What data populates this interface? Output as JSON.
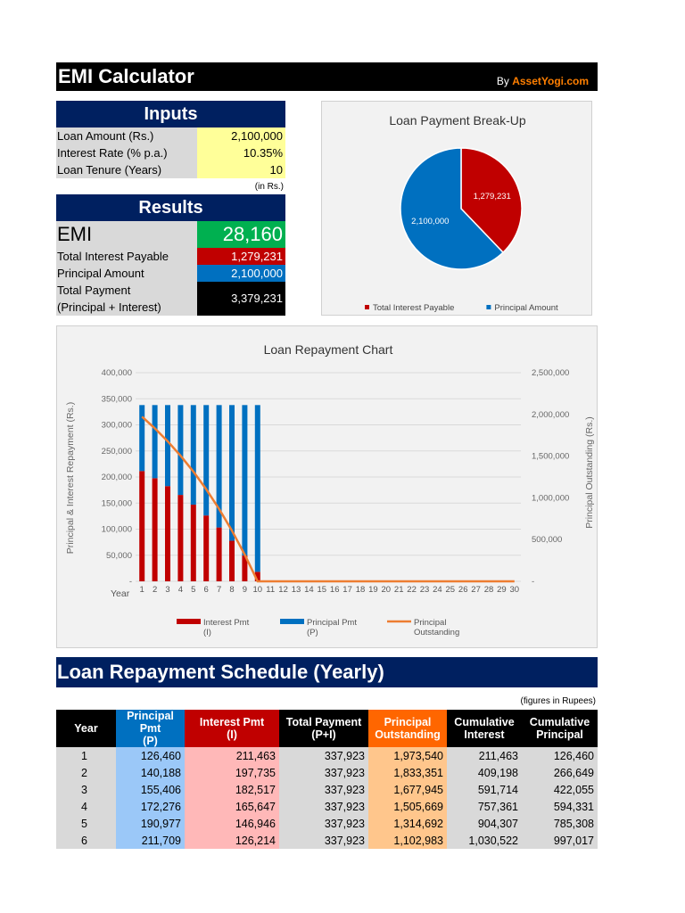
{
  "header": {
    "title": "EMI Calculator",
    "by": "By ",
    "brand": "AssetYogi.com"
  },
  "inputs": {
    "title": "Inputs",
    "rows": [
      {
        "label": "Loan Amount (Rs.)",
        "value": "2,100,000"
      },
      {
        "label": "Interest Rate (% p.a.)",
        "value": "10.35%"
      },
      {
        "label": "Loan Tenure (Years)",
        "value": "10"
      }
    ]
  },
  "results": {
    "unit_note": "(in Rs.)",
    "title": "Results",
    "emi_label": "EMI",
    "emi_value": "28,160",
    "rows": [
      {
        "label": "Total Interest Payable",
        "value": "1,279,231",
        "color": "#c00000"
      },
      {
        "label": "Principal Amount",
        "value": "2,100,000",
        "color": "#0070c0"
      },
      {
        "label": "Total Payment",
        "label2": "(Principal + Interest)",
        "value": "3,379,231",
        "color": "#000000"
      }
    ]
  },
  "chart_data": [
    {
      "type": "pie",
      "title": "Loan Payment Break-Up",
      "slices": [
        {
          "name": "Total Interest Payable",
          "value": 1279231,
          "label": "1,279,231",
          "color": "#c00000"
        },
        {
          "name": "Principal Amount",
          "value": 2100000,
          "label": "2,100,000",
          "color": "#0070c0"
        }
      ],
      "legend": "bottom"
    },
    {
      "type": "bar",
      "stacked": true,
      "title": "Loan Repayment Chart",
      "xlabel": "Year",
      "ylabel": "Principal & Interest Repayment (Rs.)",
      "y2label": "Principal Outstanding (Rs.)",
      "ylim": [
        0,
        400000
      ],
      "y2lim": [
        0,
        2500000
      ],
      "grid": true,
      "legend": "bottom",
      "yticks": [
        "-",
        "50,000",
        "100,000",
        "150,000",
        "200,000",
        "250,000",
        "300,000",
        "350,000",
        "400,000"
      ],
      "y2ticks": [
        "-",
        "500,000",
        "1,000,000",
        "1,500,000",
        "2,000,000",
        "2,500,000"
      ],
      "categories": [
        1,
        2,
        3,
        4,
        5,
        6,
        7,
        8,
        9,
        10,
        11,
        12,
        13,
        14,
        15,
        16,
        17,
        18,
        19,
        20,
        21,
        22,
        23,
        24,
        25,
        26,
        27,
        28,
        29,
        30
      ],
      "series": [
        {
          "name": "Interest Pmt (I)",
          "color": "#c00000",
          "values": [
            211463,
            197735,
            182517,
            165647,
            146946,
            126214,
            103223,
            77733,
            49479,
            18274,
            0,
            0,
            0,
            0,
            0,
            0,
            0,
            0,
            0,
            0,
            0,
            0,
            0,
            0,
            0,
            0,
            0,
            0,
            0,
            0
          ]
        },
        {
          "name": "Principal Pmt (P)",
          "color": "#0070c0",
          "values": [
            126460,
            140188,
            155406,
            172276,
            190977,
            211709,
            234700,
            260190,
            288444,
            319649,
            0,
            0,
            0,
            0,
            0,
            0,
            0,
            0,
            0,
            0,
            0,
            0,
            0,
            0,
            0,
            0,
            0,
            0,
            0,
            0
          ]
        },
        {
          "name": "Principal Outstanding",
          "type": "line",
          "axis": "secondary",
          "color": "#ed7d31",
          "values": [
            1973540,
            1833351,
            1677945,
            1505669,
            1314692,
            1102983,
            868283,
            608093,
            319649,
            0,
            0,
            0,
            0,
            0,
            0,
            0,
            0,
            0,
            0,
            0,
            0,
            0,
            0,
            0,
            0,
            0,
            0,
            0,
            0,
            0
          ]
        }
      ],
      "legend_items": [
        {
          "l1": "Interest Pmt",
          "l2": "(I)"
        },
        {
          "l1": "Principal Pmt",
          "l2": "(P)"
        },
        {
          "l1": "Principal",
          "l2": "Outstanding"
        }
      ]
    }
  ],
  "schedule": {
    "title": "Loan Repayment Schedule (Yearly)",
    "note": "(figures in Rupees)",
    "columns": [
      {
        "l1": "Year",
        "l2": ""
      },
      {
        "l1": "Principal Pmt",
        "l2": "(P)"
      },
      {
        "l1": "Interest Pmt",
        "l2": "(I)"
      },
      {
        "l1": "Total Payment",
        "l2": "(P+I)"
      },
      {
        "l1": "Principal",
        "l2": "Outstanding"
      },
      {
        "l1": "Cumulative",
        "l2": "Interest"
      },
      {
        "l1": "Cumulative",
        "l2": "Principal"
      }
    ],
    "rows": [
      [
        "1",
        "126,460",
        "211,463",
        "337,923",
        "1,973,540",
        "211,463",
        "126,460"
      ],
      [
        "2",
        "140,188",
        "197,735",
        "337,923",
        "1,833,351",
        "409,198",
        "266,649"
      ],
      [
        "3",
        "155,406",
        "182,517",
        "337,923",
        "1,677,945",
        "591,714",
        "422,055"
      ],
      [
        "4",
        "172,276",
        "165,647",
        "337,923",
        "1,505,669",
        "757,361",
        "594,331"
      ],
      [
        "5",
        "190,977",
        "146,946",
        "337,923",
        "1,314,692",
        "904,307",
        "785,308"
      ],
      [
        "6",
        "211,709",
        "126,214",
        "337,923",
        "1,102,983",
        "1,030,522",
        "997,017"
      ]
    ]
  }
}
